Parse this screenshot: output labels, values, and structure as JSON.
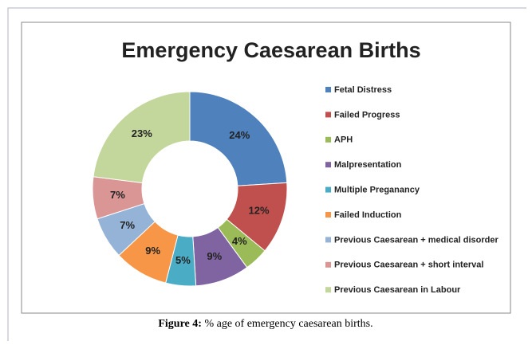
{
  "chart_data": {
    "type": "pie",
    "title": "Emergency Caesarean Births",
    "categories": [
      "Fetal Distress",
      "Failed Progress",
      "APH",
      "Malpresentation",
      "Multiple Preganancy",
      "Failed Induction",
      "Previous Caesarean + medical disorder",
      "Previous Caesarean + short interval",
      "Previous Caesarean in Labour"
    ],
    "values": [
      24,
      12,
      4,
      9,
      5,
      9,
      7,
      7,
      23
    ],
    "value_labels": [
      "24%",
      "12%",
      "4%",
      "9%",
      "5%",
      "9%",
      "7%",
      "7%",
      "23%"
    ],
    "colors": [
      "#4F81BD",
      "#C0504D",
      "#9BBB59",
      "#8064A2",
      "#4BACC6",
      "#F79646",
      "#95B3D7",
      "#D99694",
      "#C3D69B"
    ],
    "legend": "right"
  },
  "caption": {
    "label": "Figure 4:",
    "text": "% age of emergency caesarean births."
  }
}
